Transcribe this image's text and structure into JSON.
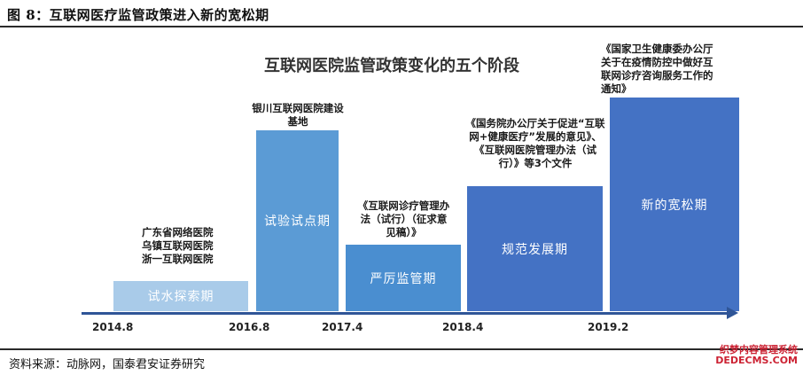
{
  "figure_title": "图 8：互联网医疗监管政策进入新的宽松期",
  "diagram_title": "互联网医院监管政策变化的五个阶段",
  "stages": [
    {
      "label": "试水探索期",
      "color": "#a9cbe9"
    },
    {
      "label": "试验试点期",
      "color": "#5b9bd5"
    },
    {
      "label": "严厉监管期",
      "color": "#4a8ed0"
    },
    {
      "label": "规范发展期",
      "color": "#4472c4"
    },
    {
      "label": "新的宽松期",
      "color": "#4472c4"
    }
  ],
  "annotations": [
    "广东省网络医院\n乌镇互联网医院\n浙一互联网医院",
    "银川互联网医院建设\n基地",
    "《互联网诊疗管理办\n法（试行）（征求意\n见稿）》",
    "《国务院办公厅关于促进“互联\n网+健康医疗”发展的意见》、\n《互联网医院管理办法（试\n行）》等3个文件",
    "《国家卫生健康委办公厅\n关于在疫情防控中做好互\n联网诊疗咨询服务工作的\n通知》"
  ],
  "timeline_dates": [
    "2014.8",
    "2016.8",
    "2017.4",
    "2018.4",
    "2019.2"
  ],
  "source": "资料来源：动脉网，国泰君安证券研究",
  "watermark": "织梦内容管理系统\nDEDECMS.COM",
  "axis_color": "#2f5597"
}
